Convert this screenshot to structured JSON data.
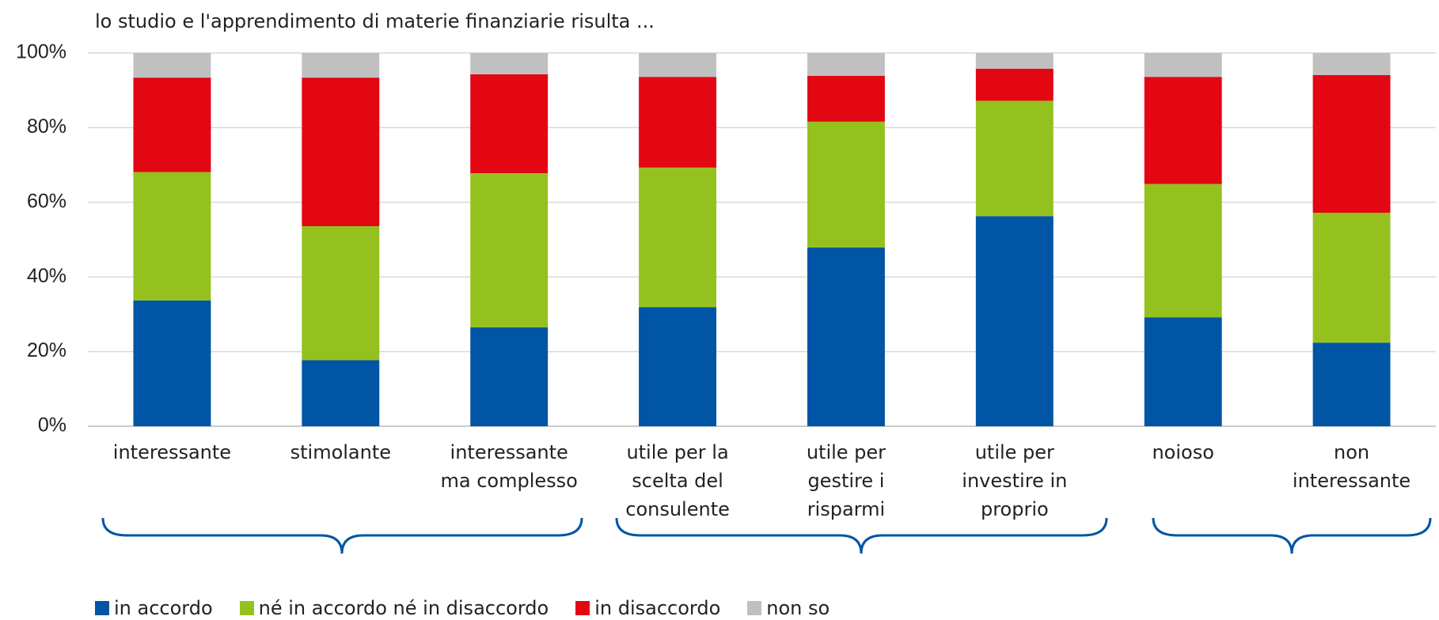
{
  "chart_data": {
    "type": "stacked_bar",
    "title": "lo studio e l'apprendimento di materie finanziarie risulta ...",
    "categories": [
      "interessante",
      "stimolante",
      "interessante ma complesso",
      "utile per la scelta del consulente",
      "utile per gestire i risparmi",
      "utile per investire in proprio",
      "noioso",
      "non interessante"
    ],
    "series": [
      {
        "name": "in accordo",
        "color": "#0055a4",
        "values": [
          33.7,
          17.7,
          26.5,
          31.9,
          47.9,
          56.3,
          29.2,
          22.4
        ]
      },
      {
        "name": "né in accordo né in disaccordo",
        "color": "#95c11f",
        "values": [
          34.4,
          35.9,
          41.3,
          37.4,
          33.7,
          30.9,
          35.7,
          34.8
        ]
      },
      {
        "name": "in disaccordo",
        "color": "#e30613",
        "values": [
          25.3,
          39.8,
          26.5,
          24.3,
          12.3,
          8.6,
          28.7,
          36.9
        ]
      },
      {
        "name": "non so",
        "color": "#c0c0c0",
        "values": [
          6.6,
          6.6,
          5.7,
          6.4,
          6.1,
          4.2,
          6.4,
          5.9
        ]
      }
    ],
    "ylim": [
      0,
      100
    ],
    "yticks": [
      {
        "value": 0,
        "label": "0%"
      },
      {
        "value": 20,
        "label": "20%"
      },
      {
        "value": 40,
        "label": "40%"
      },
      {
        "value": 60,
        "label": "60%"
      },
      {
        "value": 80,
        "label": "80%"
      },
      {
        "value": 100,
        "label": "100%"
      }
    ],
    "grid": true,
    "legend": "bottom"
  }
}
